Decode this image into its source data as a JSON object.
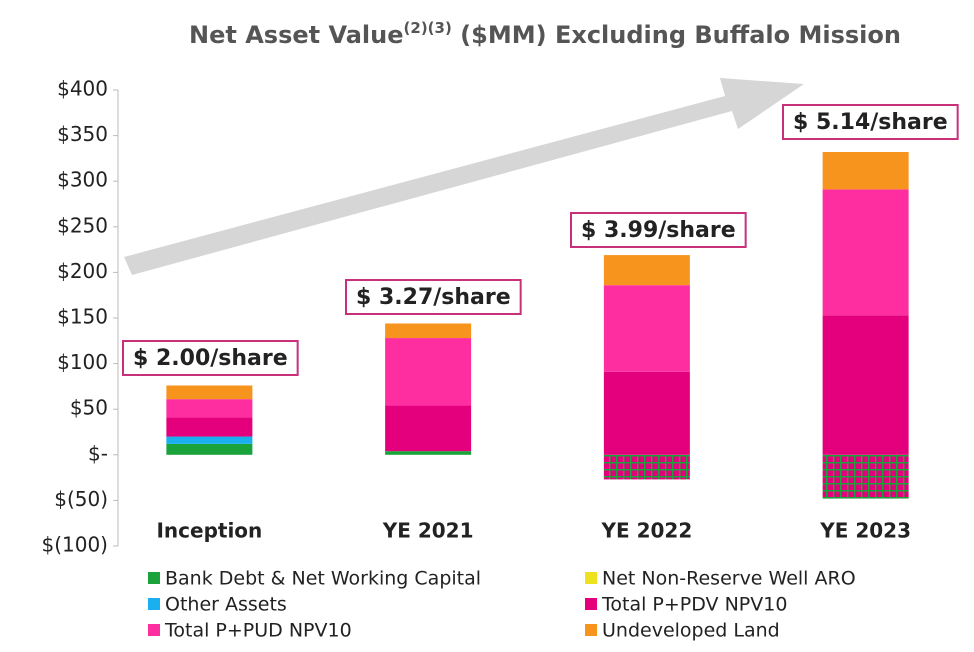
{
  "chart_data": {
    "type": "stacked_bar",
    "title": {
      "main": "Net Asset Value",
      "superscript": "(2)(3)",
      "rest": " ($MM) Excluding Buffalo Mission"
    },
    "categories": [
      "Inception",
      "YE 2021",
      "YE 2022",
      "YE 2023"
    ],
    "series": [
      {
        "name": "Bank Debt & Net Working Capital",
        "color": "#1aa33a",
        "values": [
          12,
          4,
          -27,
          -48
        ]
      },
      {
        "name": "Net Non-Reserve Well ARO",
        "color": "#eee21e",
        "values": [
          0,
          0,
          0,
          0
        ]
      },
      {
        "name": "Other Assets",
        "color": "#1ab0f0",
        "values": [
          8,
          0,
          0,
          0
        ]
      },
      {
        "name": "Total P+PDV NPV10",
        "color": "#e4007c",
        "values": [
          21,
          50,
          91,
          153
        ]
      },
      {
        "name": "Total P+PUD NPV10",
        "color": "#ff2ea0",
        "values": [
          20,
          74,
          95,
          138
        ]
      },
      {
        "name": "Undeveloped Land",
        "color": "#f7941d",
        "values": [
          15,
          16,
          33,
          41
        ]
      }
    ],
    "annotations": [
      "$ 2.00/share",
      "$ 3.27/share",
      "$ 3.99/share",
      "$ 5.14/share"
    ],
    "ylim": [
      -100,
      400
    ],
    "yticks": [
      {
        "value": -100,
        "label": "$(100)"
      },
      {
        "value": -50,
        "label": "$(50)"
      },
      {
        "value": 0,
        "label": "$-"
      },
      {
        "value": 50,
        "label": "$50"
      },
      {
        "value": 100,
        "label": "$100"
      },
      {
        "value": 150,
        "label": "$150"
      },
      {
        "value": 200,
        "label": "$200"
      },
      {
        "value": 250,
        "label": "$250"
      },
      {
        "value": 300,
        "label": "$300"
      },
      {
        "value": 350,
        "label": "$350"
      },
      {
        "value": 400,
        "label": "$400"
      }
    ],
    "grid": false
  }
}
